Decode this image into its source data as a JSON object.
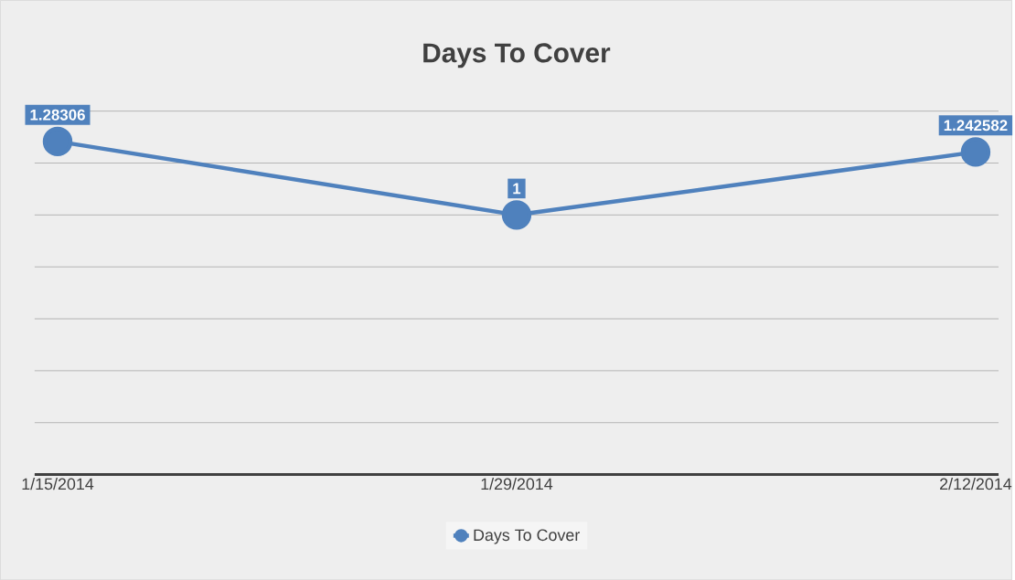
{
  "chart_data": {
    "type": "line",
    "title": "Days To Cover",
    "categories": [
      "1/15/2014",
      "1/29/2014",
      "2/12/2014"
    ],
    "series": [
      {
        "name": "Days To Cover",
        "color": "#4f81bd",
        "values": [
          1.28306,
          1,
          1.242582
        ]
      }
    ],
    "ylim": [
      0,
      1.4
    ],
    "yticks": [
      {
        "value": 0,
        "label": null
      },
      {
        "value": 0.2,
        "label": null
      },
      {
        "value": 0.4,
        "label": null
      },
      {
        "value": 0.6,
        "label": null
      },
      {
        "value": 0.8,
        "label": null
      },
      {
        "value": 1,
        "label": null
      },
      {
        "value": 1.2,
        "label": null
      },
      {
        "value": 1.4,
        "label": null
      }
    ],
    "tick_labels": "x",
    "grid": "y",
    "legend": "bottom",
    "marker": "circle",
    "data_labels": true
  }
}
